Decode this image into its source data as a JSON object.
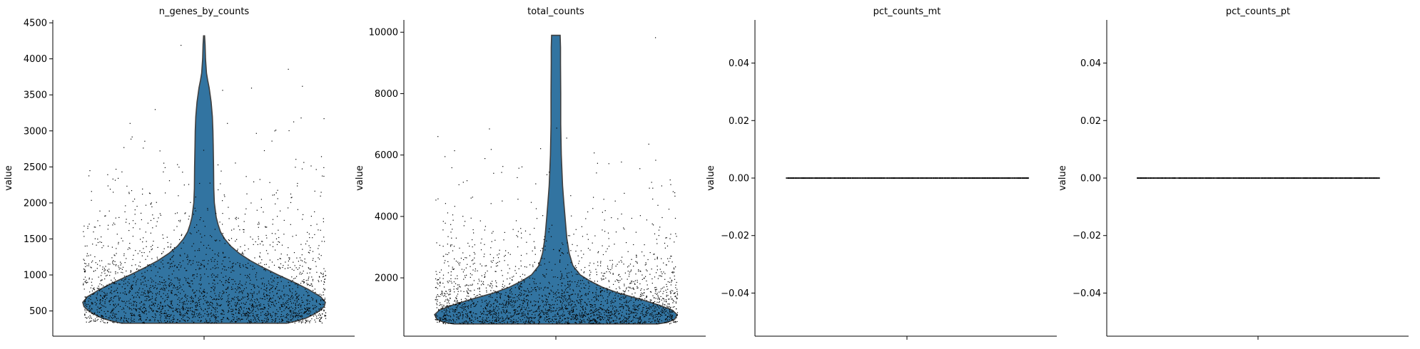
{
  "figure": {
    "background": "#ffffff",
    "violin_fill": "#3274a1",
    "violin_edge": "#3f3f3f",
    "point_color": "#000000"
  },
  "chart_data": [
    {
      "type": "violin",
      "title": "n_genes_by_counts",
      "ylabel": "value",
      "xlabel": "",
      "ylim": [
        150,
        4540
      ],
      "yticks": [
        500,
        1000,
        1500,
        2000,
        2500,
        3000,
        3500,
        4000,
        4500
      ],
      "ytick_labels": [
        "500",
        "1000",
        "1500",
        "2000",
        "2500",
        "3000",
        "3500",
        "4000",
        "4500"
      ],
      "density_profile": [
        [
          330,
          0.68
        ],
        [
          360,
          0.76
        ],
        [
          400,
          0.84
        ],
        [
          450,
          0.9
        ],
        [
          500,
          0.95
        ],
        [
          560,
          0.99
        ],
        [
          620,
          1.0
        ],
        [
          700,
          0.96
        ],
        [
          800,
          0.86
        ],
        [
          900,
          0.74
        ],
        [
          1000,
          0.61
        ],
        [
          1100,
          0.49
        ],
        [
          1200,
          0.38
        ],
        [
          1300,
          0.29
        ],
        [
          1400,
          0.22
        ],
        [
          1500,
          0.17
        ],
        [
          1600,
          0.135
        ],
        [
          1700,
          0.115
        ],
        [
          1800,
          0.1
        ],
        [
          2000,
          0.085
        ],
        [
          2200,
          0.08
        ],
        [
          2500,
          0.078
        ],
        [
          2800,
          0.075
        ],
        [
          3000,
          0.073
        ],
        [
          3200,
          0.068
        ],
        [
          3400,
          0.058
        ],
        [
          3500,
          0.05
        ],
        [
          3600,
          0.042
        ],
        [
          3700,
          0.03
        ],
        [
          3800,
          0.02
        ],
        [
          4000,
          0.012
        ],
        [
          4200,
          0.008
        ],
        [
          4320,
          0.004
        ]
      ],
      "strip_points": {
        "count": 2600,
        "range": [
          330,
          4320
        ],
        "distribution": "lognormal",
        "median": 640,
        "sigma": 0.62
      }
    },
    {
      "type": "violin",
      "title": "total_counts",
      "ylabel": "value",
      "xlabel": "",
      "ylim": [
        100,
        10400
      ],
      "yticks": [
        2000,
        4000,
        6000,
        8000,
        10000
      ],
      "ytick_labels": [
        "2000",
        "4000",
        "6000",
        "8000",
        "10000"
      ],
      "density_profile": [
        [
          500,
          0.84
        ],
        [
          550,
          0.92
        ],
        [
          650,
          0.98
        ],
        [
          800,
          1.0
        ],
        [
          950,
          0.96
        ],
        [
          1100,
          0.86
        ],
        [
          1300,
          0.7
        ],
        [
          1500,
          0.52
        ],
        [
          1700,
          0.38
        ],
        [
          1900,
          0.28
        ],
        [
          2100,
          0.2
        ],
        [
          2400,
          0.14
        ],
        [
          2800,
          0.11
        ],
        [
          3300,
          0.09
        ],
        [
          4000,
          0.075
        ],
        [
          4500,
          0.065
        ],
        [
          5000,
          0.055
        ],
        [
          6000,
          0.045
        ],
        [
          7000,
          0.04
        ],
        [
          8000,
          0.04
        ],
        [
          9000,
          0.038
        ],
        [
          9500,
          0.038
        ],
        [
          9900,
          0.035
        ]
      ],
      "strip_points": {
        "count": 2600,
        "range": [
          500,
          9900
        ],
        "distribution": "lognormal",
        "median": 980,
        "sigma": 0.72
      }
    },
    {
      "type": "violin",
      "title": "pct_counts_mt",
      "ylabel": "value",
      "xlabel": "",
      "ylim": [
        -0.055,
        0.055
      ],
      "yticks": [
        -0.04,
        -0.02,
        0.0,
        0.02,
        0.04
      ],
      "ytick_labels": [
        "−0.04",
        "−0.02",
        "0.00",
        "0.02",
        "0.04"
      ],
      "values": "all 0.0",
      "strip_points": {
        "count": 2600,
        "value": 0.0
      }
    },
    {
      "type": "violin",
      "title": "pct_counts_pt",
      "ylabel": "value",
      "xlabel": "",
      "ylim": [
        -0.055,
        0.055
      ],
      "yticks": [
        -0.04,
        -0.02,
        0.0,
        0.02,
        0.04
      ],
      "ytick_labels": [
        "−0.04",
        "−0.02",
        "0.00",
        "0.02",
        "0.04"
      ],
      "values": "all 0.0",
      "strip_points": {
        "count": 2600,
        "value": 0.0
      }
    }
  ]
}
